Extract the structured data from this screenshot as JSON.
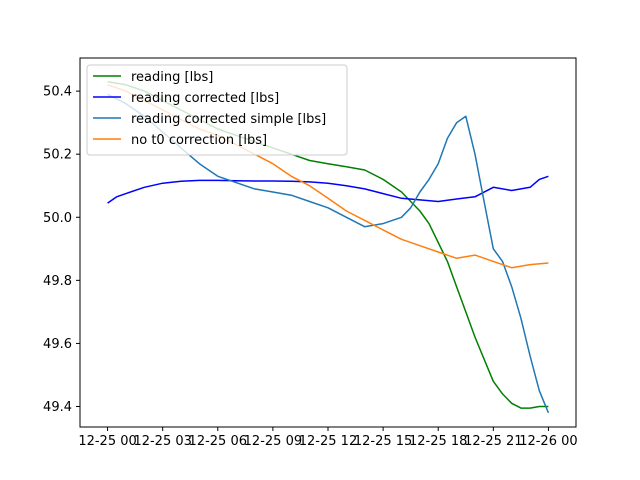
{
  "chart_data": {
    "type": "line",
    "x_unit": "datetime",
    "xlim": [
      "2023-12-24 22:30",
      "2023-12-26 01:30"
    ],
    "ylim": [
      49.335,
      50.505
    ],
    "x_ticks": [
      {
        "value": "2023-12-25 00:00",
        "label": "12-25 00"
      },
      {
        "value": "2023-12-25 03:00",
        "label": "12-25 03"
      },
      {
        "value": "2023-12-25 06:00",
        "label": "12-25 06"
      },
      {
        "value": "2023-12-25 09:00",
        "label": "12-25 09"
      },
      {
        "value": "2023-12-25 12:00",
        "label": "12-25 12"
      },
      {
        "value": "2023-12-25 15:00",
        "label": "12-25 15"
      },
      {
        "value": "2023-12-25 18:00",
        "label": "12-25 18"
      },
      {
        "value": "2023-12-25 21:00",
        "label": "12-25 21"
      },
      {
        "value": "2023-12-26 00:00",
        "label": "12-26 00"
      }
    ],
    "y_ticks": [
      {
        "value": 49.4,
        "label": "49.4"
      },
      {
        "value": 49.6,
        "label": "49.6"
      },
      {
        "value": 49.8,
        "label": "49.8"
      },
      {
        "value": 50.0,
        "label": "50.0"
      },
      {
        "value": 50.2,
        "label": "50.2"
      },
      {
        "value": 50.4,
        "label": "50.4"
      }
    ],
    "grid": false,
    "legend_position": "upper-left",
    "series": [
      {
        "name": "reading [lbs]",
        "color": "#008000",
        "x": [
          "2023-12-25 00:00",
          "2023-12-25 01:00",
          "2023-12-25 02:00",
          "2023-12-25 03:00",
          "2023-12-25 04:00",
          "2023-12-25 05:00",
          "2023-12-25 06:00",
          "2023-12-25 07:00",
          "2023-12-25 08:00",
          "2023-12-25 09:00",
          "2023-12-25 10:00",
          "2023-12-25 11:00",
          "2023-12-25 12:00",
          "2023-12-25 13:00",
          "2023-12-25 14:00",
          "2023-12-25 15:00",
          "2023-12-25 16:00",
          "2023-12-25 17:00",
          "2023-12-25 17:30",
          "2023-12-25 18:00",
          "2023-12-25 18:30",
          "2023-12-25 19:00",
          "2023-12-25 19:30",
          "2023-12-25 20:00",
          "2023-12-25 20:30",
          "2023-12-25 21:00",
          "2023-12-25 21:30",
          "2023-12-25 22:00",
          "2023-12-25 22:30",
          "2023-12-25 23:00",
          "2023-12-25 23:30",
          "2023-12-26 00:00"
        ],
        "y": [
          50.43,
          50.42,
          50.4,
          50.37,
          50.34,
          50.31,
          50.28,
          50.26,
          50.24,
          50.22,
          50.2,
          50.18,
          50.17,
          50.16,
          50.15,
          50.12,
          50.08,
          50.02,
          49.98,
          49.92,
          49.86,
          49.78,
          49.7,
          49.62,
          49.55,
          49.48,
          49.44,
          49.41,
          49.395,
          49.395,
          49.4,
          49.4
        ]
      },
      {
        "name": "reading corrected [lbs]",
        "color": "#0000ff",
        "x": [
          "2023-12-25 00:00",
          "2023-12-25 00:30",
          "2023-12-25 01:00",
          "2023-12-25 02:00",
          "2023-12-25 03:00",
          "2023-12-25 04:00",
          "2023-12-25 05:00",
          "2023-12-25 06:00",
          "2023-12-25 07:00",
          "2023-12-25 08:00",
          "2023-12-25 09:00",
          "2023-12-25 10:00",
          "2023-12-25 11:00",
          "2023-12-25 12:00",
          "2023-12-25 13:00",
          "2023-12-25 14:00",
          "2023-12-25 15:00",
          "2023-12-25 16:00",
          "2023-12-25 17:00",
          "2023-12-25 18:00",
          "2023-12-25 19:00",
          "2023-12-25 20:00",
          "2023-12-25 21:00",
          "2023-12-25 22:00",
          "2023-12-25 23:00",
          "2023-12-25 23:30",
          "2023-12-26 00:00"
        ],
        "y": [
          50.045,
          50.065,
          50.075,
          50.095,
          50.108,
          50.114,
          50.117,
          50.117,
          50.116,
          50.115,
          50.115,
          50.114,
          50.112,
          50.108,
          50.1,
          50.09,
          50.075,
          50.06,
          50.055,
          50.05,
          50.058,
          50.065,
          50.095,
          50.085,
          50.095,
          50.12,
          50.13
        ]
      },
      {
        "name": "reading corrected simple [lbs]",
        "color": "#1f77b4",
        "x": [
          "2023-12-25 00:00",
          "2023-12-25 01:00",
          "2023-12-25 02:00",
          "2023-12-25 03:00",
          "2023-12-25 04:00",
          "2023-12-25 05:00",
          "2023-12-25 06:00",
          "2023-12-25 07:00",
          "2023-12-25 08:00",
          "2023-12-25 09:00",
          "2023-12-25 10:00",
          "2023-12-25 11:00",
          "2023-12-25 12:00",
          "2023-12-25 13:00",
          "2023-12-25 14:00",
          "2023-12-25 15:00",
          "2023-12-25 16:00",
          "2023-12-25 16:30",
          "2023-12-25 17:00",
          "2023-12-25 17:30",
          "2023-12-25 18:00",
          "2023-12-25 18:30",
          "2023-12-25 19:00",
          "2023-12-25 19:30",
          "2023-12-25 20:00",
          "2023-12-25 20:30",
          "2023-12-25 21:00",
          "2023-12-25 21:30",
          "2023-12-25 22:00",
          "2023-12-25 22:30",
          "2023-12-25 23:00",
          "2023-12-25 23:30",
          "2023-12-26 00:00"
        ],
        "y": [
          50.39,
          50.36,
          50.32,
          50.27,
          50.22,
          50.17,
          50.13,
          50.11,
          50.09,
          50.08,
          50.07,
          50.05,
          50.03,
          50.0,
          49.97,
          49.98,
          50.0,
          50.03,
          50.08,
          50.12,
          50.17,
          50.25,
          50.3,
          50.32,
          50.2,
          50.05,
          49.9,
          49.86,
          49.78,
          49.68,
          49.56,
          49.45,
          49.38
        ]
      },
      {
        "name": "no t0 correction [lbs]",
        "color": "#ff7f0e",
        "x": [
          "2023-12-25 00:00",
          "2023-12-25 01:00",
          "2023-12-25 02:00",
          "2023-12-25 03:00",
          "2023-12-25 04:00",
          "2023-12-25 05:00",
          "2023-12-25 06:00",
          "2023-12-25 07:00",
          "2023-12-25 08:00",
          "2023-12-25 09:00",
          "2023-12-25 10:00",
          "2023-12-25 11:00",
          "2023-12-25 12:00",
          "2023-12-25 13:00",
          "2023-12-25 14:00",
          "2023-12-25 15:00",
          "2023-12-25 16:00",
          "2023-12-25 17:00",
          "2023-12-25 18:00",
          "2023-12-25 19:00",
          "2023-12-25 20:00",
          "2023-12-25 21:00",
          "2023-12-25 22:00",
          "2023-12-25 23:00",
          "2023-12-26 00:00"
        ],
        "y": [
          50.42,
          50.4,
          50.37,
          50.34,
          50.31,
          50.28,
          50.26,
          50.23,
          50.2,
          50.17,
          50.13,
          50.1,
          50.06,
          50.02,
          49.99,
          49.96,
          49.93,
          49.91,
          49.89,
          49.87,
          49.88,
          49.86,
          49.84,
          49.85,
          49.855
        ]
      }
    ]
  }
}
